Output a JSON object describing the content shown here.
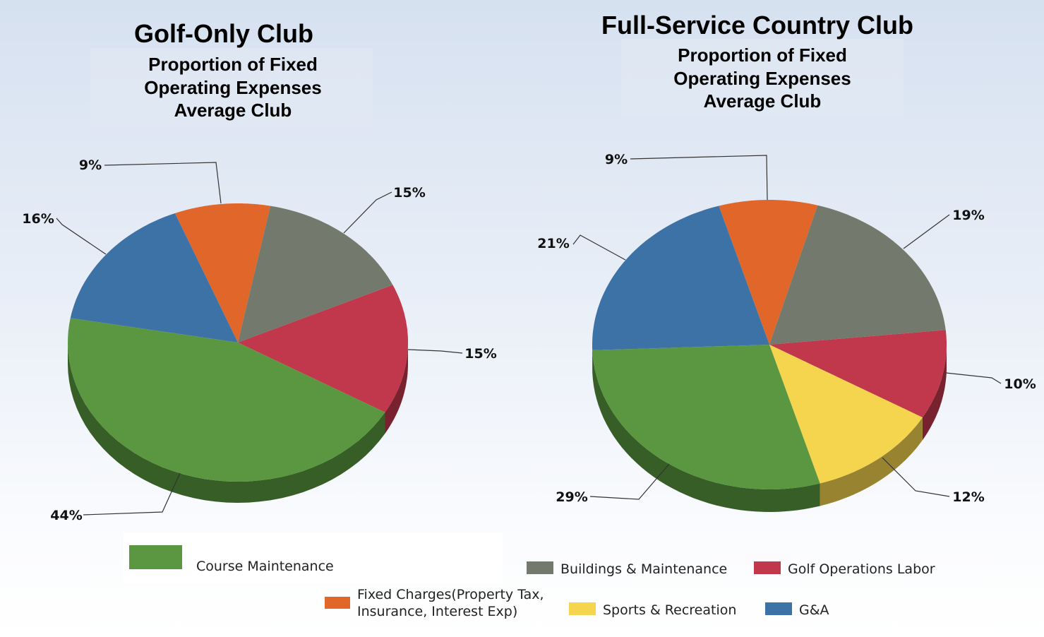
{
  "chart_data": [
    {
      "type": "pie",
      "title": "Golf-Only Club",
      "subtitle": [
        "Proportion of Fixed",
        "Operating Expenses",
        "Average Club"
      ],
      "slices": [
        {
          "name": "Fixed Charges(Property Tax, Insurance, Interest Exp)",
          "value": 9,
          "label": "9%",
          "color": "#e0662a"
        },
        {
          "name": "Buildings & Maintenance",
          "value": 15,
          "label": "15%",
          "color": "#737a6d"
        },
        {
          "name": "Golf Operations Labor",
          "value": 15,
          "label": "15%",
          "color": "#c1374b"
        },
        {
          "name": "Course Maintenance",
          "value": 44,
          "label": "44%",
          "color": "#5b9741"
        },
        {
          "name": "G&A",
          "value": 16,
          "label": "16%",
          "color": "#3d72a6"
        }
      ]
    },
    {
      "type": "pie",
      "title": "Full-Service Country Club",
      "subtitle": [
        "Proportion of Fixed",
        "Operating Expenses",
        "Average Club"
      ],
      "slices": [
        {
          "name": "Fixed Charges(Property Tax, Insurance, Interest Exp)",
          "value": 9,
          "label": "9%",
          "color": "#e0662a"
        },
        {
          "name": "Buildings & Maintenance",
          "value": 19,
          "label": "19%",
          "color": "#737a6d"
        },
        {
          "name": "Golf Operations Labor",
          "value": 10,
          "label": "10%",
          "color": "#c1374b"
        },
        {
          "name": "Sports & Recreation",
          "value": 12,
          "label": "12%",
          "color": "#f5d54e"
        },
        {
          "name": "Course Maintenance",
          "value": 29,
          "label": "29%",
          "color": "#5b9741"
        },
        {
          "name": "G&A",
          "value": 21,
          "label": "21%",
          "color": "#3d72a6"
        }
      ]
    }
  ],
  "legend": [
    {
      "label": "Course Maintenance",
      "color": "#5b9741"
    },
    {
      "label": "Buildings & Maintenance",
      "color": "#737a6d"
    },
    {
      "label": "Golf Operations Labor",
      "color": "#c1374b"
    },
    {
      "label": [
        "Fixed Charges(Property Tax,",
        "Insurance, Interest Exp)"
      ],
      "color": "#e0662a"
    },
    {
      "label": "Sports & Recreation",
      "color": "#f5d54e"
    },
    {
      "label": "G&A",
      "color": "#3d72a6"
    }
  ]
}
